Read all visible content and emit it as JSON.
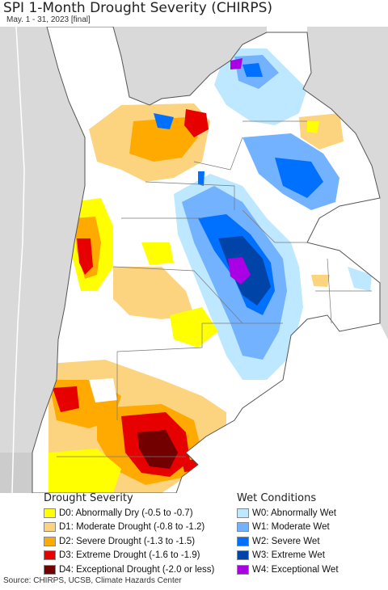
{
  "header": {
    "title": "SPI 1-Month Drought Severity (CHIRPS)",
    "subtitle": "May. 1 - 31, 2023 [final]"
  },
  "legend": {
    "drought_title": "Drought Severity",
    "drought_items": [
      {
        "label": "D0: Abnormally Dry (-0.5 to -0.7)",
        "color": "#ffff00"
      },
      {
        "label": "D1: Moderate Drought (-0.8 to -1.2)",
        "color": "#fcd37f"
      },
      {
        "label": "D2: Severe Drought (-1.3 to -1.5)",
        "color": "#ffaa00"
      },
      {
        "label": "D3: Extreme Drought (-1.6 to -1.9)",
        "color": "#e60000"
      },
      {
        "label": "D4: Exceptional Drought (-2.0 or less)",
        "color": "#730000"
      }
    ],
    "wet_title": "Wet Conditions",
    "wet_items": [
      {
        "label": "W0: Abnormally Wet",
        "color": "#bee8ff"
      },
      {
        "label": "W1: Moderate Wet",
        "color": "#73b2ff"
      },
      {
        "label": "W2: Severe Wet",
        "color": "#0070ff"
      },
      {
        "label": "W3: Extreme Wet",
        "color": "#0044a8"
      },
      {
        "label": "W4: Exceptional Wet",
        "color": "#a900e6"
      }
    ]
  },
  "footer": {
    "source": "Source: CHIRPS, UCSB, Climate Hazards Center"
  }
}
